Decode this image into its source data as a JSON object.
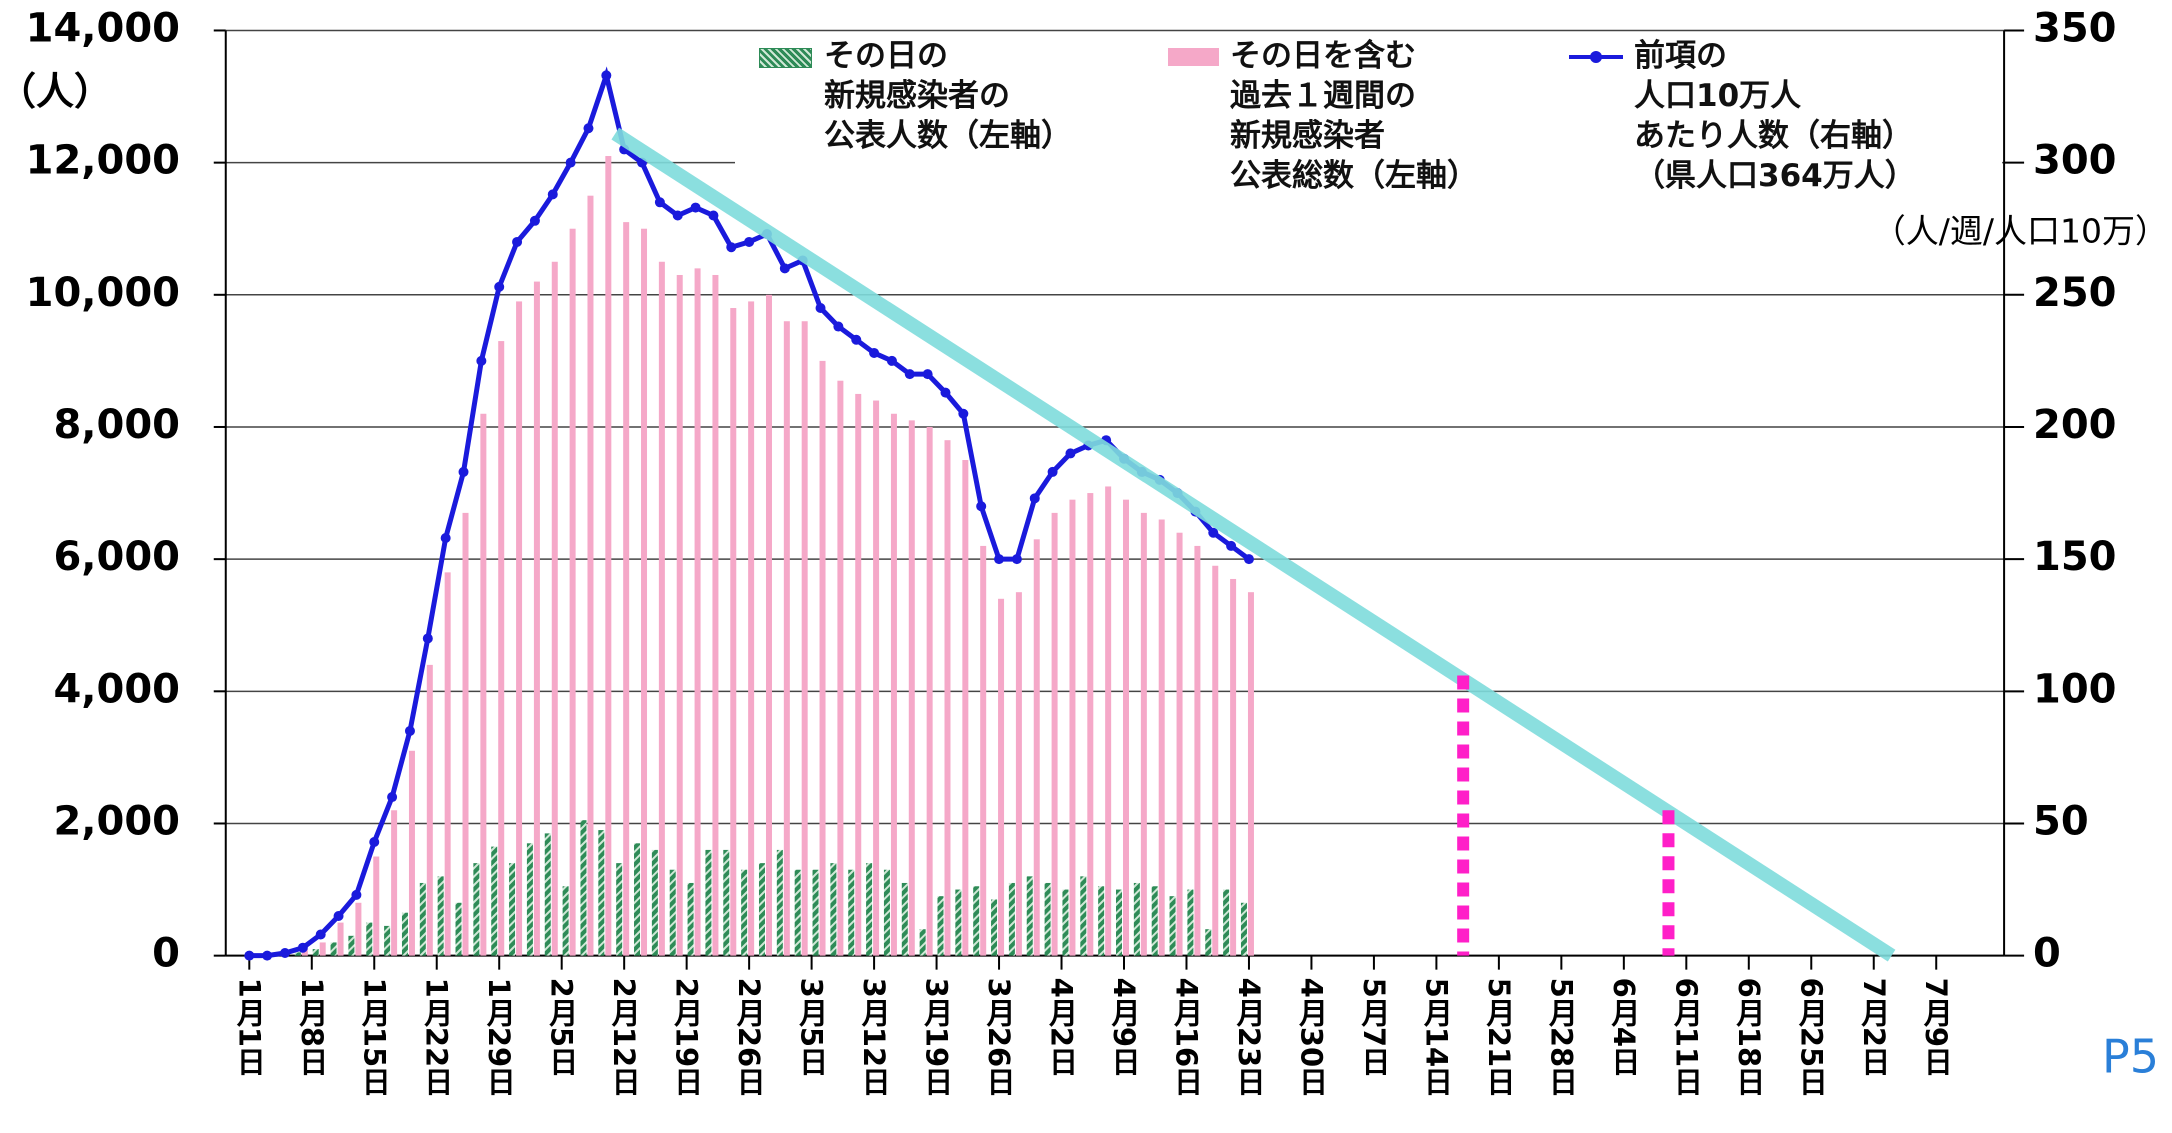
{
  "chart_data": {
    "type": "bar",
    "left_unit": "（人）",
    "right_unit": "（人/週/人口10万）",
    "page_label": "P5",
    "xlim": [
      0,
      189
    ],
    "xticks": [
      {
        "value": 0,
        "label": "1月1日"
      },
      {
        "value": 7,
        "label": "1月8日"
      },
      {
        "value": 14,
        "label": "1月15日"
      },
      {
        "value": 21,
        "label": "1月22日"
      },
      {
        "value": 28,
        "label": "1月29日"
      },
      {
        "value": 35,
        "label": "2月5日"
      },
      {
        "value": 42,
        "label": "2月12日"
      },
      {
        "value": 49,
        "label": "2月19日"
      },
      {
        "value": 56,
        "label": "2月26日"
      },
      {
        "value": 63,
        "label": "3月5日"
      },
      {
        "value": 70,
        "label": "3月12日"
      },
      {
        "value": 77,
        "label": "3月19日"
      },
      {
        "value": 84,
        "label": "3月26日"
      },
      {
        "value": 91,
        "label": "4月2日"
      },
      {
        "value": 98,
        "label": "4月9日"
      },
      {
        "value": 105,
        "label": "4月16日"
      },
      {
        "value": 112,
        "label": "4月23日"
      },
      {
        "value": 119,
        "label": "4月30日"
      },
      {
        "value": 126,
        "label": "5月7日"
      },
      {
        "value": 133,
        "label": "5月14日"
      },
      {
        "value": 140,
        "label": "5月21日"
      },
      {
        "value": 147,
        "label": "5月28日"
      },
      {
        "value": 154,
        "label": "6月4日"
      },
      {
        "value": 161,
        "label": "6月11日"
      },
      {
        "value": 168,
        "label": "6月18日"
      },
      {
        "value": 175,
        "label": "6月25日"
      },
      {
        "value": 182,
        "label": "7月2日"
      },
      {
        "value": 189,
        "label": "7月9日"
      }
    ],
    "ylim": [
      0,
      14000
    ],
    "yticks": [
      0,
      {
        "value": 2000,
        "label": "2,000"
      },
      {
        "value": 4000,
        "label": "4,000"
      },
      {
        "value": 6000,
        "label": "6,000"
      },
      {
        "value": 8000,
        "label": "8,000"
      },
      {
        "value": 10000,
        "label": "10,000"
      },
      {
        "value": 12000,
        "label": "12,000"
      },
      {
        "value": 14000,
        "label": "14,000"
      }
    ],
    "y2lim": [
      0,
      350
    ],
    "y2ticks": [
      0,
      50,
      100,
      150,
      200,
      250,
      300,
      350
    ],
    "grid": true,
    "x": [
      0,
      2,
      4,
      6,
      8,
      10,
      12,
      14,
      16,
      18,
      20,
      22,
      24,
      26,
      28,
      30,
      32,
      34,
      36,
      38,
      40,
      42,
      44,
      46,
      48,
      50,
      52,
      54,
      56,
      58,
      60,
      62,
      64,
      66,
      68,
      70,
      72,
      74,
      76,
      78,
      80,
      82,
      84,
      86,
      88,
      90,
      92,
      94,
      96,
      98,
      100,
      102,
      104,
      106,
      108,
      110,
      112
    ],
    "series": [
      {
        "name": "その日を含む\n過去１週間の\n新規感染者\n公表総数（左軸）",
        "type": "bar",
        "color": "#f5a8c8",
        "values": [
          0,
          0,
          0,
          100,
          200,
          500,
          800,
          1500,
          2200,
          3100,
          4400,
          5800,
          6700,
          8200,
          9300,
          9900,
          10200,
          10500,
          11000,
          11500,
          12100,
          11100,
          11000,
          10500,
          10300,
          10400,
          10300,
          9800,
          9900,
          10000,
          9600,
          9600,
          9000,
          8700,
          8500,
          8400,
          8200,
          8100,
          8000,
          7800,
          7500,
          6200,
          5400,
          5500,
          6300,
          6700,
          6900,
          7000,
          7100,
          6900,
          6700,
          6600,
          6400,
          6200,
          5900,
          5700,
          5500
        ]
      },
      {
        "name": "その日の\n新規感染者の\n公表人数（左軸）",
        "type": "bar",
        "color": "#2e8b57",
        "values": [
          0,
          0,
          0,
          50,
          100,
          200,
          300,
          500,
          450,
          650,
          1100,
          1200,
          800,
          1400,
          1650,
          1400,
          1700,
          1850,
          1050,
          2050,
          1900,
          1400,
          1700,
          1600,
          1300,
          1100,
          1600,
          1600,
          1300,
          1400,
          1600,
          1300,
          1300,
          1400,
          1300,
          1400,
          1300,
          1100,
          400,
          900,
          1000,
          1050,
          850,
          1100,
          1200,
          1100,
          1000,
          1200,
          1050,
          1000,
          1100,
          1050,
          900,
          1000,
          400,
          1000,
          800
        ]
      },
      {
        "name": "前項の\n人口10万人\nあたり人数（右軸）\n（県人口364万人）",
        "type": "line",
        "axis": "y2",
        "color": "#1a1adc",
        "values": [
          0,
          0,
          1,
          3,
          8,
          15,
          23,
          43,
          60,
          85,
          120,
          158,
          183,
          225,
          253,
          270,
          278,
          288,
          300,
          313,
          333,
          305,
          300,
          285,
          280,
          283,
          280,
          268,
          270,
          273,
          260,
          263,
          245,
          238,
          233,
          228,
          225,
          220,
          220,
          213,
          205,
          170,
          150,
          150,
          173,
          183,
          190,
          193,
          195,
          188,
          183,
          180,
          175,
          168,
          160,
          155,
          150
        ]
      }
    ],
    "trend_line": {
      "color": "#7fdcdc",
      "axis": "y2",
      "x": [
        41,
        184
      ],
      "values": [
        311,
        0
      ]
    },
    "markers": {
      "color": "#ff1fc8",
      "axis": "y2",
      "x": [
        136,
        159
      ],
      "values": [
        106,
        55
      ]
    }
  }
}
